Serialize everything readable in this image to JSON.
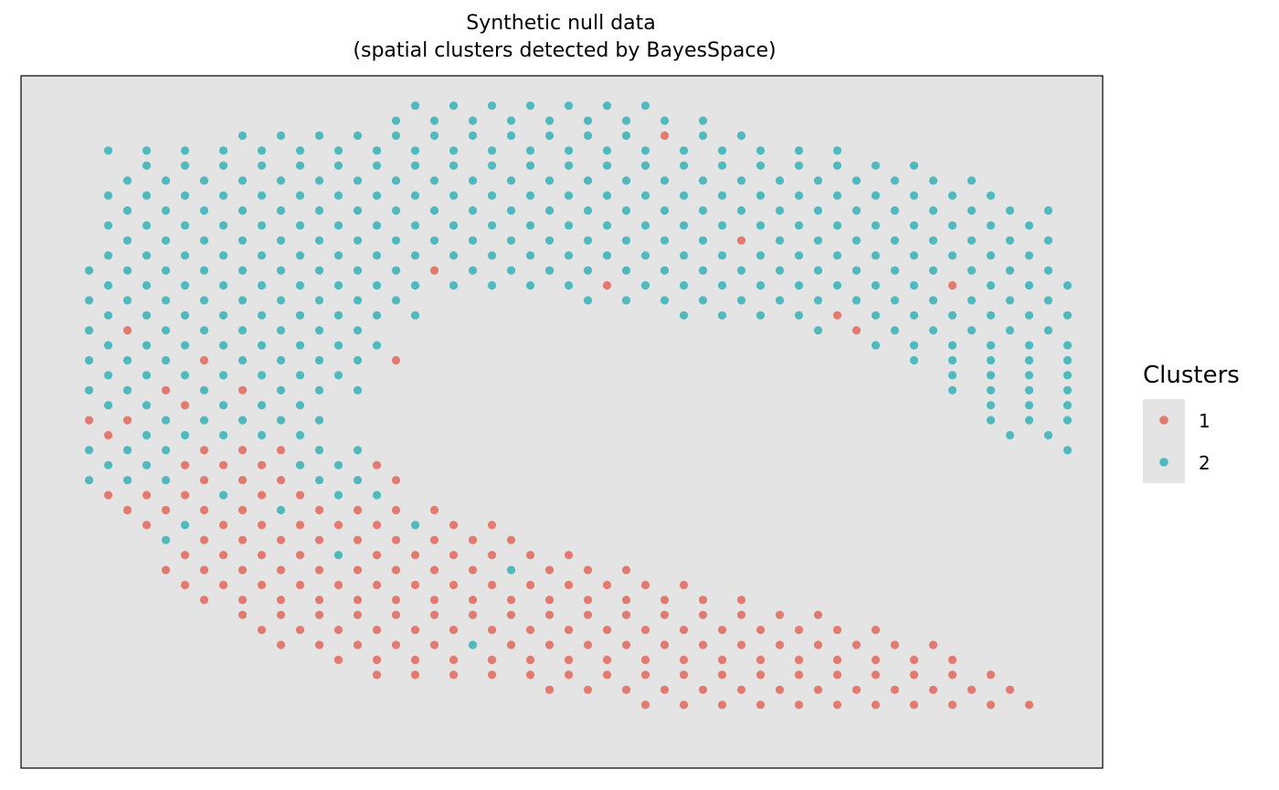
{
  "chart_data": {
    "type": "scatter",
    "title": [
      "Synthetic null data",
      "(spatial clusters detected by BayesSpace)"
    ],
    "xlabel": "",
    "ylabel": "",
    "axes_visible": false,
    "grid": false,
    "legend": {
      "title": "Clusters",
      "placement": "right",
      "entries": [
        {
          "label": "1",
          "color": "#E27A70"
        },
        {
          "label": "2",
          "color": "#4FB9BE"
        }
      ]
    },
    "colors": {
      "1": "#E27A70",
      "2": "#4FB9BE",
      "panel": "#E4E4E4"
    },
    "spot_grid": {
      "rows": 43,
      "cols": 54,
      "layout": "hexagonal offset grid; odd rows shifted half a column",
      "row_encoding": "row r string: character c is the spot at column c; '.' = no spot, '1' = cluster 1, '2' = cluster 2"
    },
    "spots": [
      "......................................................",
      "...................2.2.2.2.2.2.2......................",
      "..................2.2.2.2.2.2.2.2.2...................",
      "..........2.2.2.2.2.2.2.2.2.2.2.1.2.2.................",
      "...2.2.2.2.2.2.2.2.2.2.2.2.2.2.2.2.2.2.2.2............",
      ".....2.2.2.2.2.2.2.2.2.2.2.2.2.2.2.2.2.2.2.2.2........",
      "....2.2.2.2.2.2.2.2.2.2.2.2.2.2.2.2.2.2.2.2.2.2.2.....",
      "...2.2.2.2.2.2.2.2.2.2.2.2.2.2.2.2.2.2.2.2.2.2.2.2....",
      "....2.2.2.2.2.2.2.2.2.2.2.2.2.2.2.2.2.2.2.2.2.2.2.2.2.",
      "...2.2.2.2.2.2.2.2.2.2.2.2.2.2.2.2.2.2.2.2.2.2.2.2.2..",
      "....2.2.2.2.2.2.2.2.2.2.2.2.2.2.2.2.1.2.2.2.2.2.2.2.2.",
      "...2.2.2.2.2.2.2.2.2.2.2.2.2.2.2.2.2.2.2.2.2.2.2.2.2..",
      "..2.2.2.2.2.2.2.2.2.1.2.2.2.2.2.2.2.2.2.2.2.2.2.2.2.2.",
      "...2.2.2.2.2.2.2.2.2.2.2.2.2.1.2.2.2.2.2.2.2.2.1.2.2.2",
      "..2.2.2.2.2.2.2.2.2.........2.2.2.2.2.2.2.2.2.2.2.2.2.",
      "...2.2.2.2.2.2.2.2.2.............2.2.2.2.1.2.2.2.2.2.2",
      "..2.1.2.2.2.2.2.2.......................2.1.2.2.2.2.2.",
      "...2.2.2.2.2.2.2.2.........................2.2.2.2.2.2",
      "..2.2.2.1.2.2.2.2.1..........................2.2.2.2.2",
      "...2.2.2.2.2.2.2...............................2.2.2.2",
      "..2.2.1.2.1.2.2.2..............................2.2.2.2",
      "...2.2.1.2.2.2...................................2.2.2",
      "..1.1.2.2.2.2.2..................................2.2.2",
      "...1.2.2.2.2.2....................................2.2",
      "..2.2.2.1.1.1.2.2....................................2",
      "...2.2.1.1.1.2.2.1....................................",
      "..2.2.2.1.1.1.2.2.1...................................",
      "...1.1.1.2.1.1.2.2....................................",
      "....1.1.1.1.2.1.1.1.1.................................",
      ".....1.2.1.1.1.1.1.2.1.1..............................",
      "......2.1.1.1.1.1.1.1.1.1.............................",
      ".......1.1.1.1.2.1.1.1.1.1.1..........................",
      "......1.1.1.1.1.1.1.1.1.2.1.1.1.......................",
      ".......1.1.1.1.1.1.1.1.1.1.1.1.1.1....................",
      "........1.1.1.1.1.1.1.1.1.1.1.1.1.1.1.................",
      "..........1.1.1.1.1.1.1.1.1.1.1.1.1.1.1.1.............",
      "...........1.1.1.1.1.1.1.1.1.1.1.1.1.1.1.1.1..........",
      "............1.1.1.1.1.2.1.1.1.1.1.1.1.1.1.1.1.1.......",
      "...............1.1.1.1.1.1.1.1.1.1.1.1.1.1.1.1.1......",
      ".................1.1.1.1.1.1.1.1.1.1.1.1.1.1.1.1.1....",
      "..........................1.1.1.1.1.1.1.1.1.1.1.1.1...",
      "...............................1.1.1.1.1.1.1.1.1.1.1..",
      "......................................................"
    ]
  }
}
